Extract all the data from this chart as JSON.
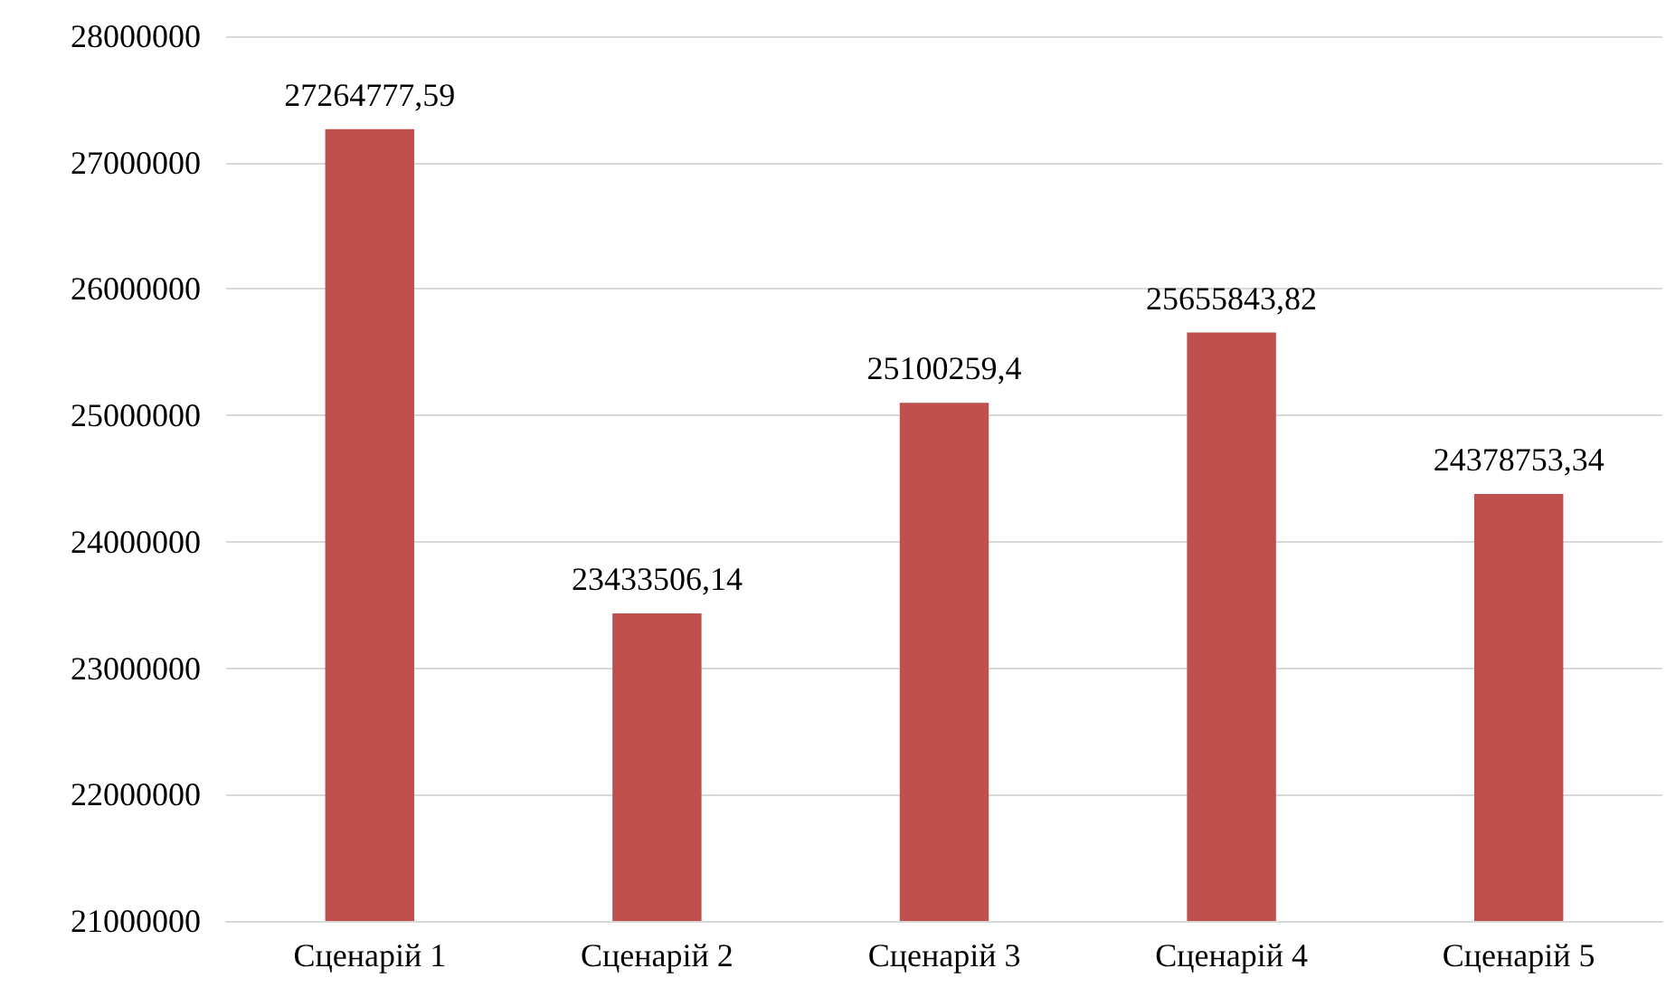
{
  "chart_data": {
    "type": "bar",
    "categories": [
      "Сценарій 1",
      "Сценарій 2",
      "Сценарій 3",
      "Сценарій 4",
      "Сценарій 5"
    ],
    "values": [
      27264777.59,
      23433506.14,
      25100259.4,
      25655843.82,
      24378753.34
    ],
    "value_labels": [
      "27264777,59",
      "23433506,14",
      "25100259,4",
      "25655843,82",
      "24378753,34"
    ],
    "color": "#c0504d",
    "ylim": [
      21000000,
      28000000
    ],
    "yticks": [
      21000000,
      22000000,
      23000000,
      24000000,
      25000000,
      26000000,
      27000000,
      28000000
    ],
    "grid": "y"
  }
}
